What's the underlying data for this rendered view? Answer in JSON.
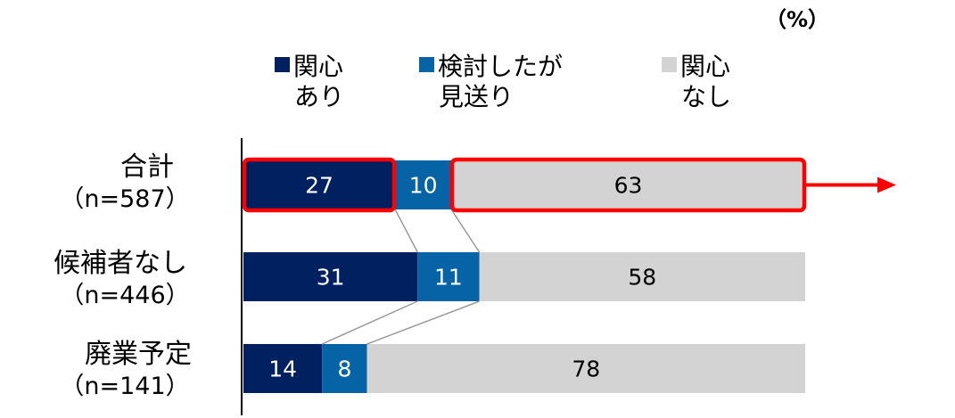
{
  "unit_label": "（%）",
  "chart_data": {
    "type": "bar",
    "orientation": "horizontal",
    "stacked": true,
    "normalized": true,
    "categories": [
      {
        "name": "合計",
        "n": "（n=587）"
      },
      {
        "name": "候補者なし",
        "n": "（n=446）"
      },
      {
        "name": "廃業予定",
        "n": "（n=141）"
      }
    ],
    "series": [
      {
        "name": "関心あり",
        "legend_lines": [
          "関心",
          "あり"
        ],
        "color": "#002060",
        "values": [
          27,
          31,
          14
        ]
      },
      {
        "name": "検討したが見送り",
        "legend_lines": [
          "検討したが",
          "見送り"
        ],
        "color": "#0563A6",
        "values": [
          10,
          11,
          8
        ]
      },
      {
        "name": "関心なし",
        "legend_lines": [
          "関心",
          "なし"
        ],
        "color": "#D3D3D3",
        "values": [
          63,
          58,
          78
        ]
      }
    ],
    "xlim": [
      0,
      100
    ],
    "grid": false,
    "legend": "top",
    "label_colors": [
      "#ffffff",
      "#ffffff",
      "#000000"
    ],
    "highlight_color": "#FF0000",
    "highlights": [
      {
        "category": 0,
        "series": [
          0
        ]
      },
      {
        "category": 0,
        "series": [
          2
        ]
      }
    ],
    "highlight_arrow": true
  }
}
